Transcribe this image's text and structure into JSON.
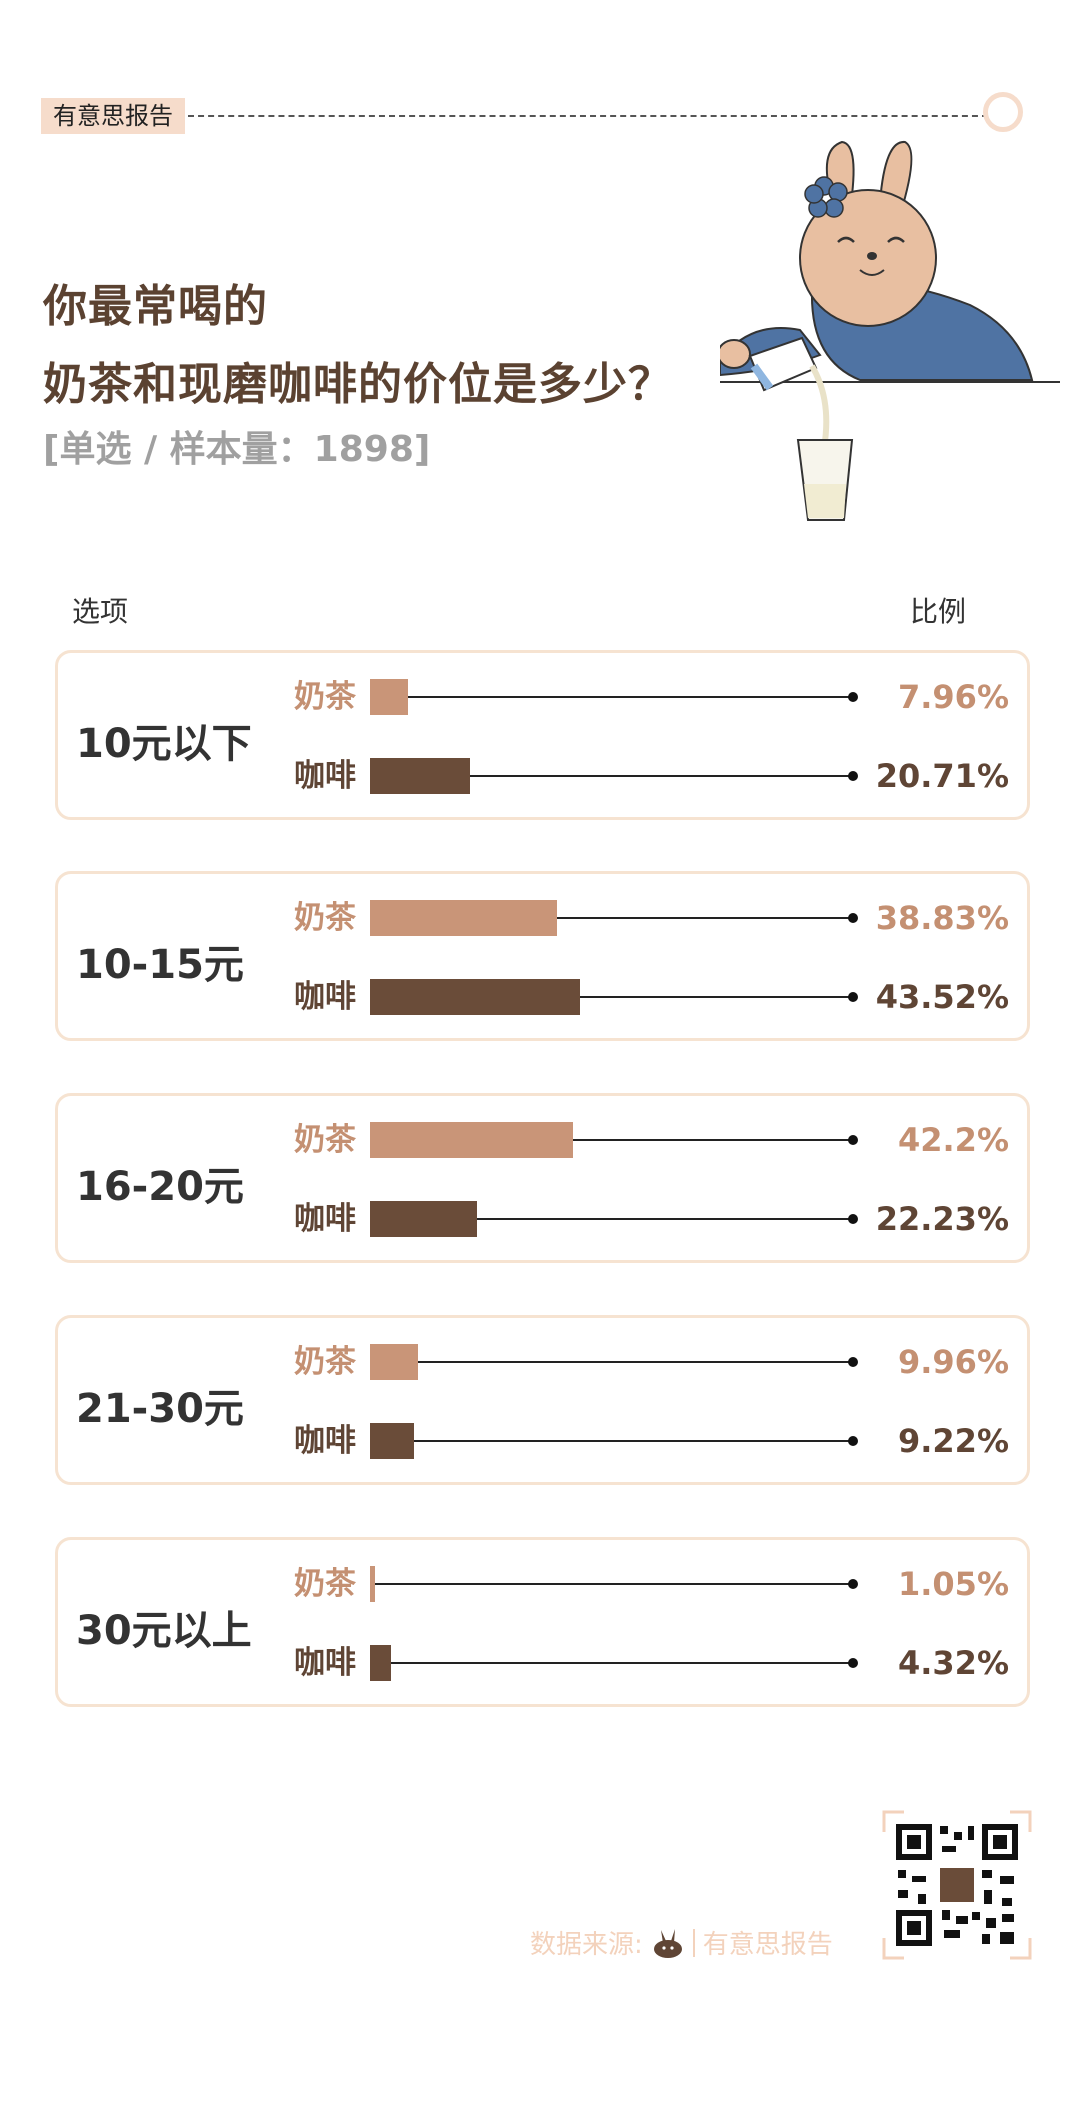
{
  "brand": "有意思报告",
  "title_lines": [
    "你最常喝的",
    "奶茶和现磨咖啡的价位是多少？"
  ],
  "subtitle": "[单选 / 样本量：1898]",
  "columns": {
    "option": "选项",
    "ratio": "比例"
  },
  "colors": {
    "tea": "#c99578",
    "coffee": "#6a4c39",
    "panel_border": "#f6e3d1",
    "brand_bg": "#f6dccb"
  },
  "icons": [
    "rabbit-mascot-icon",
    "milk-glass-icon",
    "qr-code-icon",
    "rabbit-logo-icon"
  ],
  "chart_data": {
    "type": "bar",
    "unit": "%",
    "xlim": [
      0,
      100
    ],
    "categories": [
      "10元以下",
      "10-15元",
      "16-20元",
      "21-30元",
      "30元以上"
    ],
    "series": [
      {
        "name": "奶茶",
        "values": [
          7.96,
          38.83,
          42.2,
          9.96,
          1.05
        ]
      },
      {
        "name": "咖啡",
        "values": [
          20.71,
          43.52,
          22.23,
          9.22,
          4.32
        ]
      }
    ],
    "value_labels": [
      [
        "7.96%",
        "38.83%",
        "42.2%",
        "9.96%",
        "1.05%"
      ],
      [
        "20.71%",
        "43.52%",
        "22.23%",
        "9.22%",
        "4.32%"
      ]
    ]
  },
  "footer": {
    "source_label": "数据来源:",
    "source_name": "有意思报告"
  }
}
